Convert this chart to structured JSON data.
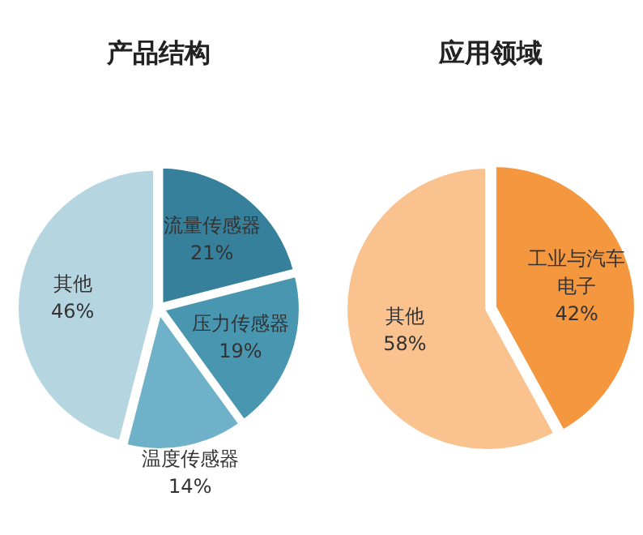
{
  "chart_data": [
    {
      "type": "pie",
      "title": "产品结构",
      "categories": [
        "流量传感器",
        "压力传感器",
        "温度传感器",
        "其他"
      ],
      "values": [
        21,
        19,
        14,
        46
      ],
      "value_labels": [
        "21%",
        "19%",
        "14%",
        "46%"
      ],
      "colors": [
        "#37809b",
        "#4996b0",
        "#6fb1c8",
        "#b5d5e0"
      ]
    },
    {
      "type": "pie",
      "title": "应用领域",
      "categories": [
        "工业与汽车电子",
        "其他"
      ],
      "values": [
        42,
        58
      ],
      "value_labels": [
        "42%",
        "58%"
      ],
      "colors": [
        "#f5973e",
        "#f9c28f"
      ]
    }
  ]
}
